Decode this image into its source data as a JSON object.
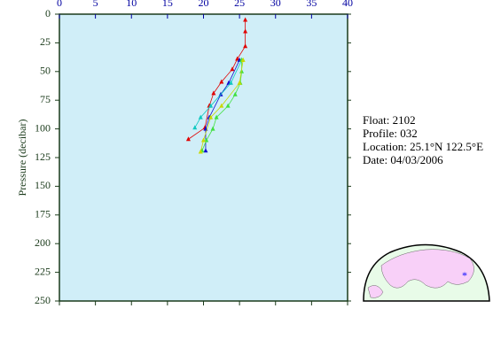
{
  "chart_data": {
    "type": "line",
    "y_label": "Pressure (decibar)",
    "xlim": [
      0,
      40
    ],
    "xticks": [
      0,
      5,
      10,
      15,
      20,
      25,
      30,
      35,
      40
    ],
    "ylim": [
      0,
      250
    ],
    "yticks": [
      0,
      25,
      50,
      75,
      100,
      125,
      150,
      175,
      200,
      225,
      250
    ],
    "y_inverted": true,
    "background": "#d0eef8",
    "series": [
      {
        "color": "#e00000",
        "x": [
          25.8,
          25.8,
          25.8,
          24.7,
          24.0,
          22.5,
          21.4,
          20.8,
          20.2,
          17.9
        ],
        "y": [
          5,
          15,
          28,
          39,
          48,
          59,
          69,
          80,
          99,
          109
        ]
      },
      {
        "color": "#1010d0",
        "x": [
          25.0,
          23.5,
          22.4,
          20.8,
          20.3,
          20.3
        ],
        "y": [
          40,
          60,
          70,
          90,
          100,
          119
        ]
      },
      {
        "color": "#10c8c0",
        "x": [
          25.3,
          23.8,
          21.0,
          19.6,
          18.8
        ],
        "y": [
          40,
          60,
          80,
          90,
          99
        ]
      },
      {
        "color": "#40e040",
        "x": [
          25.3,
          25.3,
          25.1,
          24.4,
          23.4,
          21.8,
          21.3,
          20.4,
          19.8
        ],
        "y": [
          40,
          50,
          60,
          70,
          80,
          90,
          100,
          110,
          119
        ]
      },
      {
        "color": "#c8d800",
        "x": [
          25.5,
          25.0,
          22.5,
          21.0,
          20.0,
          19.6
        ],
        "y": [
          40,
          60,
          80,
          90,
          110,
          120
        ]
      }
    ]
  },
  "info": {
    "float": "Float:  2102",
    "profile": "Profile:  032",
    "location": "Location:  25.1°N  122.5°E",
    "date": "Date:  04/03/2006"
  }
}
